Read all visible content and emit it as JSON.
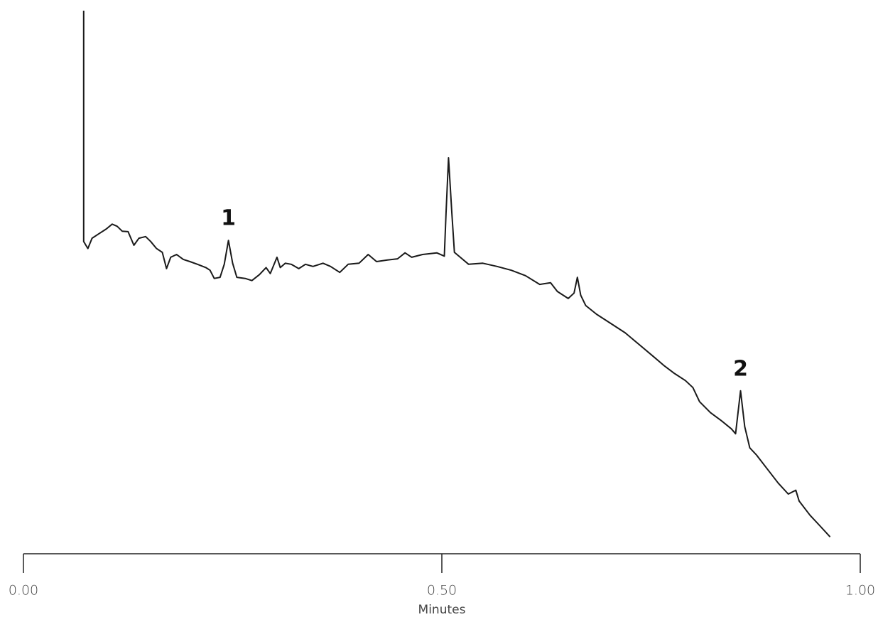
{
  "chart_data": {
    "type": "line",
    "xlabel": "Minutes",
    "xlim": [
      0,
      1
    ],
    "ylim": [
      0,
      100
    ],
    "xticks": [
      {
        "value": 0,
        "label": "0.00"
      },
      {
        "value": 0.5,
        "label": "0.50"
      },
      {
        "value": 1,
        "label": "1.00"
      }
    ],
    "color": "#1a1a1a",
    "x": [
      0.072,
      0.072,
      0.077,
      0.082,
      0.091,
      0.099,
      0.106,
      0.112,
      0.118,
      0.125,
      0.132,
      0.138,
      0.146,
      0.152,
      0.159,
      0.166,
      0.171,
      0.176,
      0.183,
      0.191,
      0.199,
      0.208,
      0.218,
      0.223,
      0.228,
      0.235,
      0.24,
      0.245,
      0.25,
      0.255,
      0.265,
      0.273,
      0.282,
      0.29,
      0.295,
      0.303,
      0.307,
      0.313,
      0.32,
      0.329,
      0.337,
      0.346,
      0.358,
      0.367,
      0.378,
      0.388,
      0.401,
      0.412,
      0.422,
      0.435,
      0.447,
      0.456,
      0.464,
      0.477,
      0.494,
      0.503,
      0.505,
      0.508,
      0.512,
      0.515,
      0.522,
      0.532,
      0.549,
      0.566,
      0.583,
      0.6,
      0.617,
      0.63,
      0.638,
      0.651,
      0.658,
      0.662,
      0.666,
      0.672,
      0.685,
      0.702,
      0.719,
      0.736,
      0.753,
      0.766,
      0.778,
      0.791,
      0.8,
      0.808,
      0.821,
      0.834,
      0.846,
      0.851,
      0.857,
      0.862,
      0.868,
      0.876,
      0.889,
      0.902,
      0.914,
      0.923,
      0.927,
      0.94,
      0.952,
      0.964
    ],
    "values": [
      100.0,
      57.5,
      56.2,
      58.1,
      59.0,
      59.8,
      60.7,
      60.3,
      59.4,
      59.3,
      56.8,
      58.1,
      58.4,
      57.5,
      56.2,
      55.5,
      52.5,
      54.6,
      55.1,
      54.2,
      53.8,
      53.3,
      52.7,
      52.2,
      50.7,
      50.9,
      53.3,
      57.7,
      53.5,
      50.9,
      50.7,
      50.3,
      51.4,
      52.7,
      51.6,
      54.6,
      52.7,
      53.5,
      53.3,
      52.5,
      53.3,
      52.9,
      53.5,
      52.9,
      51.8,
      53.3,
      53.5,
      55.1,
      53.8,
      54.1,
      54.3,
      55.4,
      54.6,
      55.1,
      55.4,
      54.8,
      62.7,
      72.9,
      62.7,
      55.5,
      54.6,
      53.3,
      53.5,
      52.9,
      52.2,
      51.2,
      49.6,
      49.9,
      48.3,
      47.0,
      48.0,
      50.9,
      47.6,
      45.7,
      44.1,
      42.4,
      40.7,
      38.5,
      36.3,
      34.6,
      33.2,
      31.9,
      30.6,
      28.0,
      26.0,
      24.5,
      23.0,
      22.1,
      30.0,
      23.4,
      19.5,
      18.2,
      15.6,
      13.0,
      11.0,
      11.7,
      9.7,
      7.1,
      5.1,
      3.1
    ],
    "annotations": [
      {
        "text": "1",
        "x": 0.245,
        "y": 57.7
      },
      {
        "text": "2",
        "x": 0.857,
        "y": 30.0
      }
    ]
  }
}
